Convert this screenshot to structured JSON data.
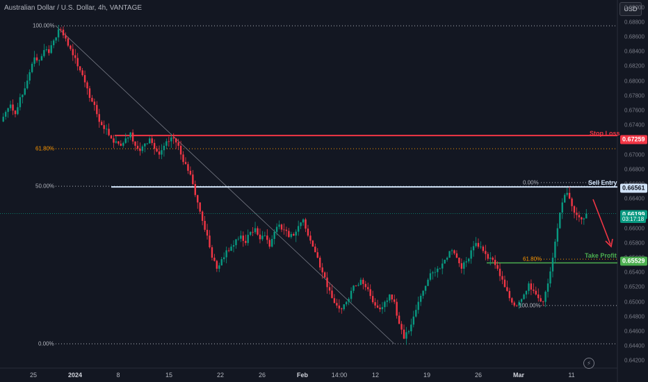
{
  "header": {
    "title": "Australian Dollar / U.S. Dollar, 4h, VANTAGE",
    "currency_button": "USD"
  },
  "price_axis": {
    "ticks": [
      "0.69000",
      "0.68800",
      "0.68600",
      "0.68400",
      "0.68200",
      "0.68000",
      "0.67800",
      "0.67600",
      "0.67400",
      "0.67200",
      "0.67000",
      "0.66800",
      "0.66600",
      "0.66400",
      "0.66200",
      "0.66000",
      "0.65800",
      "0.65600",
      "0.65400",
      "0.65200",
      "0.65000",
      "0.64800",
      "0.64600",
      "0.64400",
      "0.64200"
    ]
  },
  "time_axis": {
    "ticks": [
      {
        "label": "25",
        "bold": false
      },
      {
        "label": "2024",
        "bold": true
      },
      {
        "label": "8",
        "bold": false
      },
      {
        "label": "15",
        "bold": false
      },
      {
        "label": "22",
        "bold": false
      },
      {
        "label": "26",
        "bold": false
      },
      {
        "label": "Feb",
        "bold": true
      },
      {
        "label": "14:00",
        "bold": false
      },
      {
        "label": "12",
        "bold": false
      },
      {
        "label": "19",
        "bold": false
      },
      {
        "label": "26",
        "bold": false
      },
      {
        "label": "Mar",
        "bold": true
      },
      {
        "label": "11",
        "bold": false
      }
    ]
  },
  "price_tags": {
    "stop_loss": "0.67259",
    "sell_entry": "0.66561",
    "current_price": "0.66199",
    "countdown": "03:17:18",
    "take_profit": "0.65529"
  },
  "fib_left": {
    "levels": [
      {
        "label": "100.00%",
        "price": 0.6875,
        "color": "#b2b5be"
      },
      {
        "label": "61.80%",
        "price": 0.6708,
        "color": "#ff9800"
      },
      {
        "label": "50.00%",
        "price": 0.6657,
        "color": "#b2b5be"
      },
      {
        "label": "0.00%",
        "price": 0.6443,
        "color": "#b2b5be"
      }
    ]
  },
  "fib_right": {
    "levels": [
      {
        "label": "0.00%",
        "price": 0.6662,
        "color": "#b2b5be"
      },
      {
        "label": "61.80%",
        "price": 0.6558,
        "color": "#ff9800"
      },
      {
        "label": "100.00%",
        "price": 0.6495,
        "color": "#b2b5be"
      }
    ]
  },
  "annotations": {
    "stop_loss": "Stop Loss",
    "sell_entry": "Sell Entry",
    "take_profit": "Take Profit"
  },
  "colors": {
    "up": "#089981",
    "down": "#f23645",
    "stop": "#f23645",
    "entry": "#d1e3f8",
    "tp": "#4caf50",
    "bg": "#131722"
  },
  "chart_data": {
    "type": "candlestick",
    "title": "Australian Dollar / U.S. Dollar, 4h, VANTAGE",
    "ylim": [
      0.641,
      0.691
    ],
    "horizontal_levels": [
      {
        "name": "Stop Loss",
        "price": 0.67259
      },
      {
        "name": "Sell Entry",
        "price": 0.66561
      },
      {
        "name": "Current",
        "price": 0.66199
      },
      {
        "name": "Take Profit",
        "price": 0.65529
      }
    ],
    "path_close": [
      0.6758,
      0.6768,
      0.6755,
      0.6778,
      0.679,
      0.6812,
      0.6832,
      0.6828,
      0.6842,
      0.6838,
      0.6855,
      0.687,
      0.6862,
      0.6848,
      0.6835,
      0.682,
      0.6808,
      0.679,
      0.6772,
      0.6755,
      0.674,
      0.6735,
      0.6722,
      0.6718,
      0.6712,
      0.6722,
      0.673,
      0.6712,
      0.6705,
      0.6715,
      0.6722,
      0.6708,
      0.67,
      0.6712,
      0.6718,
      0.6722,
      0.6712,
      0.669,
      0.6678,
      0.666,
      0.6635,
      0.661,
      0.659,
      0.656,
      0.6545,
      0.6558,
      0.657,
      0.6575,
      0.6585,
      0.659,
      0.658,
      0.6595,
      0.66,
      0.6585,
      0.659,
      0.6575,
      0.6595,
      0.6605,
      0.6598,
      0.6588,
      0.659,
      0.6603,
      0.6612,
      0.659,
      0.6575,
      0.656,
      0.654,
      0.652,
      0.6505,
      0.6495,
      0.649,
      0.65,
      0.6515,
      0.6522,
      0.653,
      0.652,
      0.6508,
      0.6495,
      0.649,
      0.65,
      0.651,
      0.65,
      0.647,
      0.645,
      0.646,
      0.648,
      0.65,
      0.6515,
      0.653,
      0.654,
      0.6545,
      0.6552,
      0.656,
      0.657,
      0.656,
      0.6545,
      0.6555,
      0.657,
      0.658,
      0.6575,
      0.6565,
      0.656,
      0.655,
      0.6535,
      0.652,
      0.6505,
      0.6495,
      0.65,
      0.651,
      0.6525,
      0.6515,
      0.6505,
      0.65,
      0.6525,
      0.656,
      0.66,
      0.6635,
      0.6648,
      0.663,
      0.6618,
      0.6612,
      0.662
    ]
  }
}
